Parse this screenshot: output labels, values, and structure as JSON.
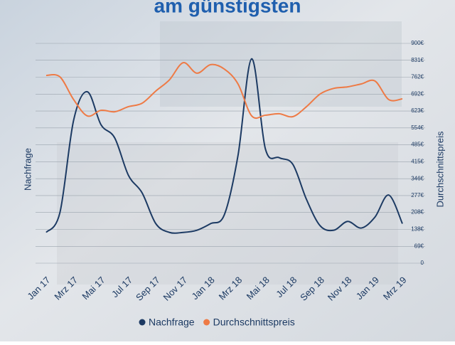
{
  "chart_data": {
    "type": "line",
    "title": "am günstigsten",
    "y_label": "Nachfrage",
    "y2_label": "Durchschnittspreis",
    "categories": [
      "Jan 17",
      null,
      "Mrz 17",
      null,
      "Mai 17",
      null,
      "Jul 17",
      null,
      "Sep 17",
      null,
      "Nov 17",
      null,
      "Jan 18",
      null,
      "Mrz 18",
      null,
      "Mai 18",
      null,
      "Jul 18",
      null,
      "Sep 18",
      null,
      "Nov 18",
      null,
      "Jan 19",
      null,
      "Mrz 19"
    ],
    "series": [
      {
        "name": "Nachfrage",
        "color": "#1c3a63",
        "axis": "y",
        "values": [
          14,
          23,
          65,
          78,
          63,
          57,
          40,
          32,
          18,
          14,
          14,
          15,
          18,
          22,
          49,
          93,
          52,
          48,
          45,
          29,
          17,
          15,
          19,
          16,
          21,
          31,
          18
        ]
      },
      {
        "name": "Durchschnittspreis",
        "color": "#ee7a45",
        "axis": "y2",
        "values": [
          769,
          763,
          670,
          603,
          626,
          620,
          641,
          655,
          705,
          751,
          821,
          778,
          813,
          795,
          734,
          603,
          606,
          612,
          600,
          641,
          693,
          716,
          722,
          734,
          746,
          670,
          673
        ]
      }
    ],
    "ylim": [
      0,
      100
    ],
    "y2lim": [
      0,
      900
    ],
    "y2ticks": [
      0,
      {
        "value": 69,
        "label": "69€"
      },
      {
        "value": 138,
        "label": "138€"
      },
      {
        "value": 208,
        "label": "208€"
      },
      {
        "value": 277,
        "label": "277€"
      },
      {
        "value": 346,
        "label": "346€"
      },
      {
        "value": 415,
        "label": "415€"
      },
      {
        "value": 485,
        "label": "485€"
      },
      {
        "value": 554,
        "label": "554€"
      },
      {
        "value": 623,
        "label": "623€"
      },
      {
        "value": 692,
        "label": "692€"
      },
      {
        "value": 762,
        "label": "762€"
      },
      {
        "value": 831,
        "label": "831€"
      },
      {
        "value": 900,
        "label": "900€"
      }
    ],
    "grid": true,
    "legend": "bottom"
  }
}
